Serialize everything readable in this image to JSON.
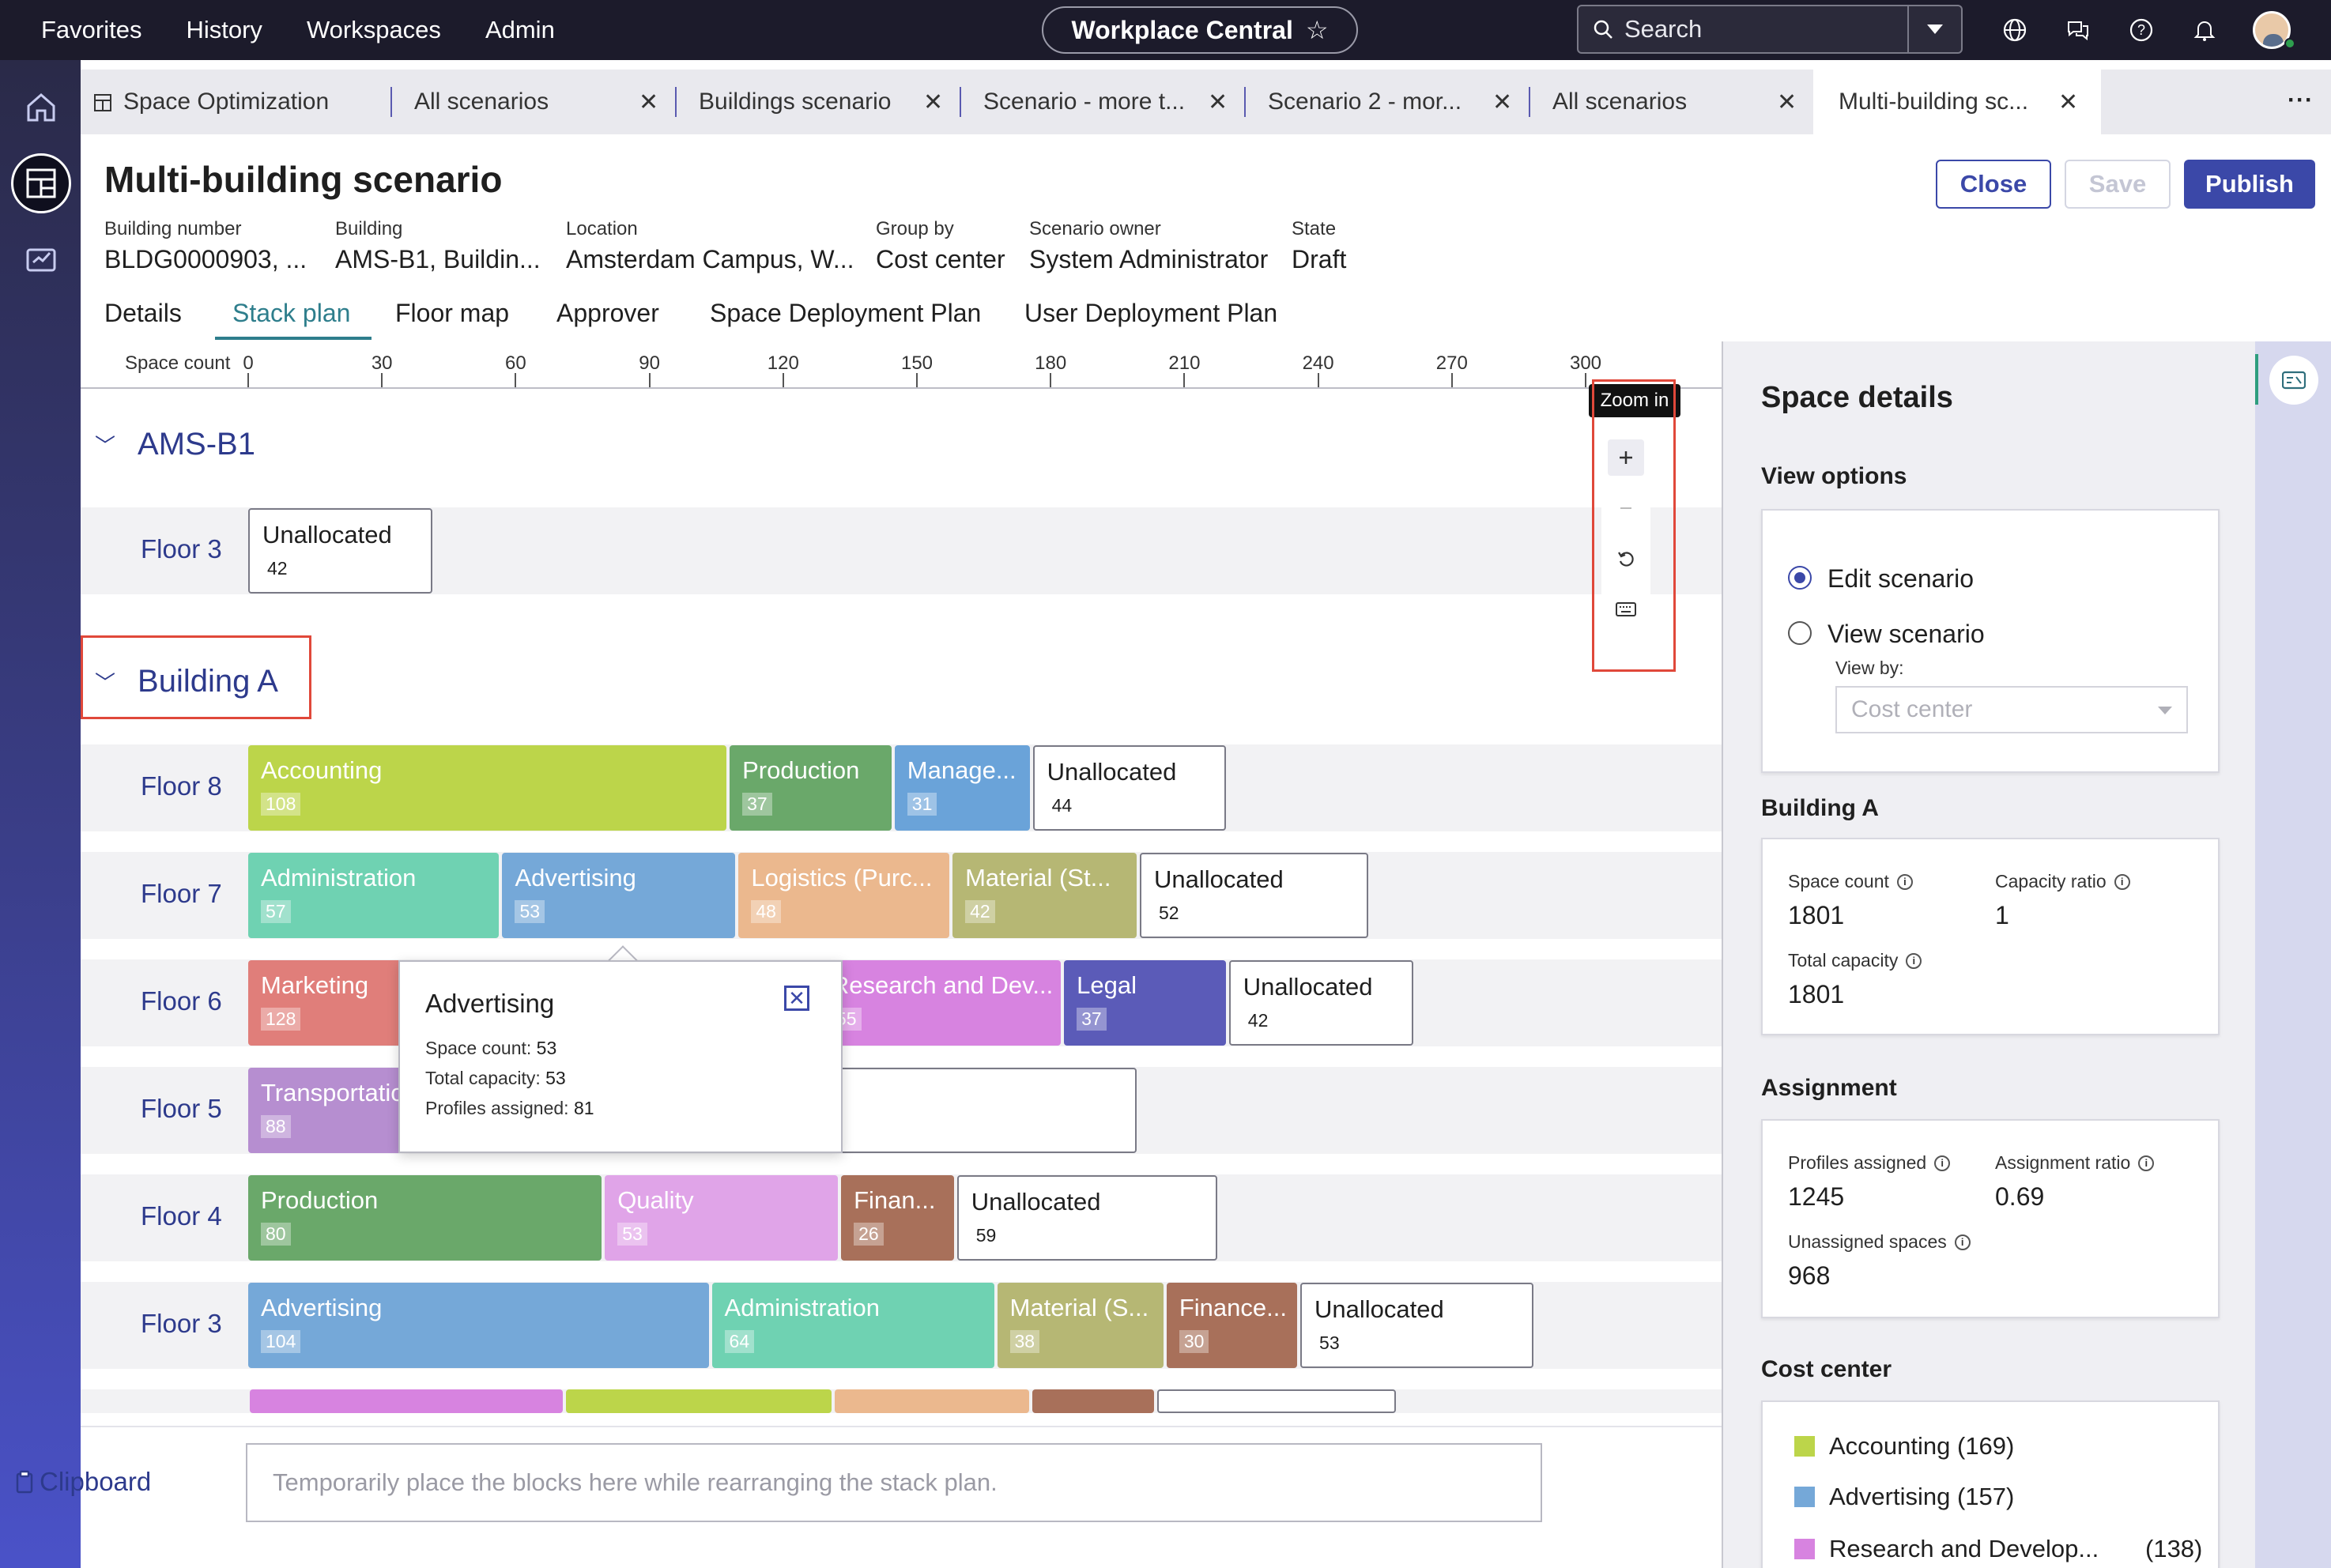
{
  "topbar": {
    "nav": [
      "Favorites",
      "History",
      "Workspaces",
      "Admin"
    ],
    "app_title": "Workplace Central",
    "search_placeholder": "Search",
    "icons": [
      "globe-icon",
      "chat-icon",
      "help-icon",
      "bell-icon",
      "avatar"
    ]
  },
  "tabs": [
    {
      "label": "Space Optimization",
      "closable": false
    },
    {
      "label": "All scenarios",
      "closable": true
    },
    {
      "label": "Buildings scenario",
      "closable": true
    },
    {
      "label": "Scenario - more t...",
      "closable": true
    },
    {
      "label": "Scenario 2 - mor...",
      "closable": true
    },
    {
      "label": "All scenarios",
      "closable": true
    },
    {
      "label": "Multi-building sc...",
      "closable": true,
      "active": true
    }
  ],
  "header": {
    "title": "Multi-building scenario",
    "buttons": {
      "close": "Close",
      "save": "Save",
      "publish": "Publish"
    },
    "meta": [
      {
        "label": "Building number",
        "value": "BLDG0000903, ..."
      },
      {
        "label": "Building",
        "value": "AMS-B1, Buildin..."
      },
      {
        "label": "Location",
        "value": "Amsterdam Campus, W..."
      },
      {
        "label": "Group by",
        "value": "Cost center"
      },
      {
        "label": "Scenario owner",
        "value": "System Administrator"
      },
      {
        "label": "State",
        "value": "Draft"
      }
    ]
  },
  "subtabs": [
    "Details",
    "Stack plan",
    "Floor map",
    "Approver",
    "Space Deployment Plan",
    "User Deployment Plan"
  ],
  "active_subtab": "Stack plan",
  "axis": {
    "title": "Space count",
    "ticks": [
      0,
      30,
      60,
      90,
      120,
      150,
      180,
      210,
      240,
      270,
      300
    ]
  },
  "buildings": [
    {
      "name": "AMS-B1",
      "floors": [
        {
          "name": "Floor 3",
          "blocks": [
            {
              "name": "Unallocated",
              "value": 42,
              "unallocated": true
            }
          ]
        }
      ]
    },
    {
      "name": "Building A",
      "floors": [
        {
          "name": "Floor 8",
          "blocks": [
            {
              "name": "Accounting",
              "value": 108,
              "color": "#bcd54a"
            },
            {
              "name": "Production",
              "value": 37,
              "color": "#6aa86a"
            },
            {
              "name": "Manage...",
              "value": 31,
              "color": "#6aa3d9"
            },
            {
              "name": "Unallocated",
              "value": 44,
              "unallocated": true
            }
          ]
        },
        {
          "name": "Floor 7",
          "blocks": [
            {
              "name": "Administration",
              "value": 57,
              "color": "#6fd2b2"
            },
            {
              "name": "Advertising",
              "value": 53,
              "color": "#75a8d8"
            },
            {
              "name": "Logistics (Purc...",
              "value": 48,
              "color": "#ebb88e"
            },
            {
              "name": "Material (St...",
              "value": 42,
              "color": "#b6b774"
            },
            {
              "name": "Unallocated",
              "value": 52,
              "unallocated": true
            }
          ]
        },
        {
          "name": "Floor 6",
          "blocks": [
            {
              "name": "Marketing",
              "value": 128,
              "color": "#e07e7a"
            },
            {
              "name": "Research and Dev...",
              "value": 55,
              "color": "#d783e0"
            },
            {
              "name": "Legal",
              "value": 37,
              "color": "#5b5bb8"
            },
            {
              "name": "Unallocated",
              "value": 42,
              "unallocated": true
            }
          ]
        },
        {
          "name": "Floor 5",
          "blocks": [
            {
              "name": "Transportation",
              "value": 88,
              "color": "#b68ed0"
            },
            {
              "name": "Unallocated",
              "value": 112,
              "unallocated": true
            }
          ]
        },
        {
          "name": "Floor 4",
          "blocks": [
            {
              "name": "Production",
              "value": 80,
              "color": "#6aa86a"
            },
            {
              "name": "Quality",
              "value": 53,
              "color": "#e0a4e8"
            },
            {
              "name": "Finan...",
              "value": 26,
              "color": "#a8705a"
            },
            {
              "name": "Unallocated",
              "value": 59,
              "unallocated": true
            }
          ]
        },
        {
          "name": "Floor 3",
          "blocks": [
            {
              "name": "Advertising",
              "value": 104,
              "color": "#75a8d8"
            },
            {
              "name": "Administration",
              "value": 64,
              "color": "#6fd2b2"
            },
            {
              "name": "Material (S...",
              "value": 38,
              "color": "#b6b774"
            },
            {
              "name": "Finance...",
              "value": 30,
              "color": "#a8705a"
            },
            {
              "name": "Unallocated",
              "value": 53,
              "unallocated": true
            }
          ]
        }
      ]
    }
  ],
  "zoom": {
    "tooltip": "Zoom in",
    "controls": [
      "zoom-in",
      "zoom-out",
      "reset",
      "keyboard"
    ]
  },
  "popover": {
    "title": "Advertising",
    "rows": [
      {
        "label": "Space count:",
        "value": "53"
      },
      {
        "label": "Total capacity:",
        "value": "53"
      },
      {
        "label": "Profiles assigned:",
        "value": "81"
      }
    ]
  },
  "clipboard": {
    "label": "Clipboard",
    "placeholder": "Temporarily place the blocks here while rearranging the stack plan."
  },
  "panel": {
    "title": "Space details",
    "view_options": {
      "heading": "View options",
      "edit": "Edit scenario",
      "view": "View scenario",
      "view_by_label": "View by:",
      "view_by_value": "Cost center",
      "selected": "edit"
    },
    "building": {
      "heading": "Building A",
      "space_count_label": "Space count",
      "space_count": "1801",
      "capacity_ratio_label": "Capacity ratio",
      "capacity_ratio": "1",
      "total_capacity_label": "Total capacity",
      "total_capacity": "1801"
    },
    "assignment": {
      "heading": "Assignment",
      "profiles_label": "Profiles assigned",
      "profiles": "1245",
      "ratio_label": "Assignment ratio",
      "ratio": "0.69",
      "unassigned_label": "Unassigned spaces",
      "unassigned": "968"
    },
    "cost_center": {
      "heading": "Cost center",
      "items": [
        {
          "name": "Accounting (169)",
          "count": "",
          "color": "#bcd54a"
        },
        {
          "name": "Advertising (157)",
          "count": "",
          "color": "#75a8d8"
        },
        {
          "name": "Research and Develop...",
          "count": "(138)",
          "color": "#d783e0"
        }
      ]
    }
  }
}
